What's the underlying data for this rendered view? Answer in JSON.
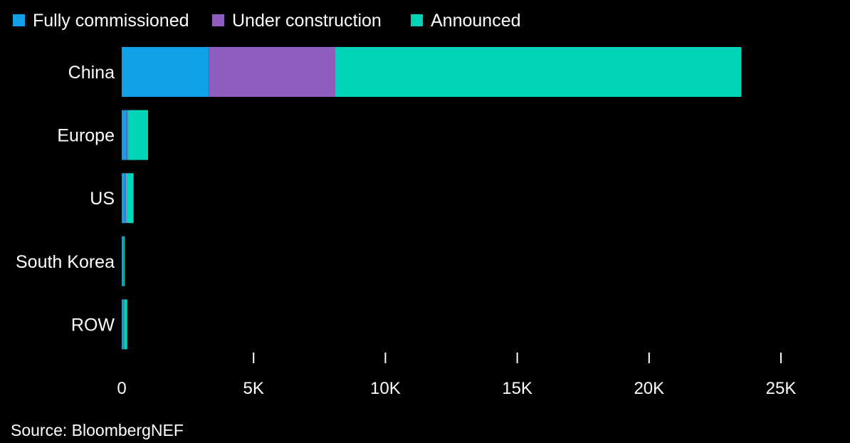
{
  "chart_data": {
    "type": "bar",
    "orientation": "horizontal",
    "stacked": true,
    "categories": [
      "China",
      "Europe",
      "US",
      "South Korea",
      "ROW"
    ],
    "series": [
      {
        "name": "Fully commissioned",
        "color": "#0fa0e6",
        "values": [
          3300,
          180,
          110,
          60,
          70
        ]
      },
      {
        "name": "Under construction",
        "color": "#8e5dbd",
        "values": [
          4800,
          40,
          50,
          10,
          20
        ]
      },
      {
        "name": "Announced",
        "color": "#00d4b8",
        "values": [
          15400,
          780,
          290,
          40,
          120
        ]
      }
    ],
    "x_ticks": [
      0,
      5000,
      10000,
      15000,
      20000,
      25000
    ],
    "x_tick_labels": [
      "0",
      "5K",
      "10K",
      "15K",
      "20K",
      "25K"
    ],
    "xlim": [
      0,
      25000
    ],
    "grid": false,
    "legend_position": "top-left"
  },
  "source": "Source: BloombergNEF"
}
